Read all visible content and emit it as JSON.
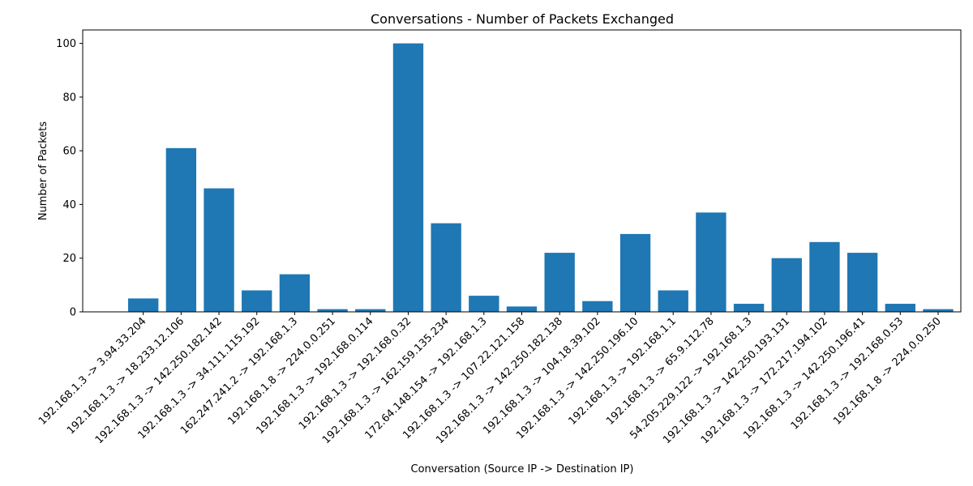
{
  "chart_data": {
    "type": "bar",
    "title": "Conversations - Number of Packets Exchanged",
    "xlabel": "Conversation (Source IP -> Destination IP)",
    "ylabel": "Number of Packets",
    "categories": [
      "192.168.1.3 -> 3.94.33.204",
      "192.168.1.3 -> 18.233.12.106",
      "192.168.1.3 -> 142.250.182.142",
      "192.168.1.3 -> 34.111.115.192",
      "162.247.241.2 -> 192.168.1.3",
      "192.168.1.8 -> 224.0.0.251",
      "192.168.1.3 -> 192.168.0.114",
      "192.168.1.3 -> 192.168.0.32",
      "192.168.1.3 -> 162.159.135.234",
      "172.64.148.154 -> 192.168.1.3",
      "192.168.1.3 -> 107.22.121.158",
      "192.168.1.3 -> 142.250.182.138",
      "192.168.1.3 -> 104.18.39.102",
      "192.168.1.3 -> 142.250.196.10",
      "192.168.1.3 -> 192.168.1.1",
      "192.168.1.3 -> 65.9.112.78",
      "54.205.229.122 -> 192.168.1.3",
      "192.168.1.3 -> 142.250.193.131",
      "192.168.1.3 -> 172.217.194.102",
      "192.168.1.3 -> 142.250.196.41",
      "192.168.1.3 -> 192.168.0.53",
      "192.168.1.8 -> 224.0.0.250"
    ],
    "values": [
      5,
      61,
      46,
      8,
      14,
      1,
      1,
      100,
      33,
      6,
      2,
      22,
      4,
      29,
      8,
      37,
      3,
      20,
      26,
      22,
      3,
      1
    ],
    "ylim": [
      0,
      105
    ],
    "yticks": [
      0,
      20,
      40,
      60,
      80,
      100
    ],
    "bar_color": "#1f77b4",
    "grid": false,
    "legend": "none"
  }
}
